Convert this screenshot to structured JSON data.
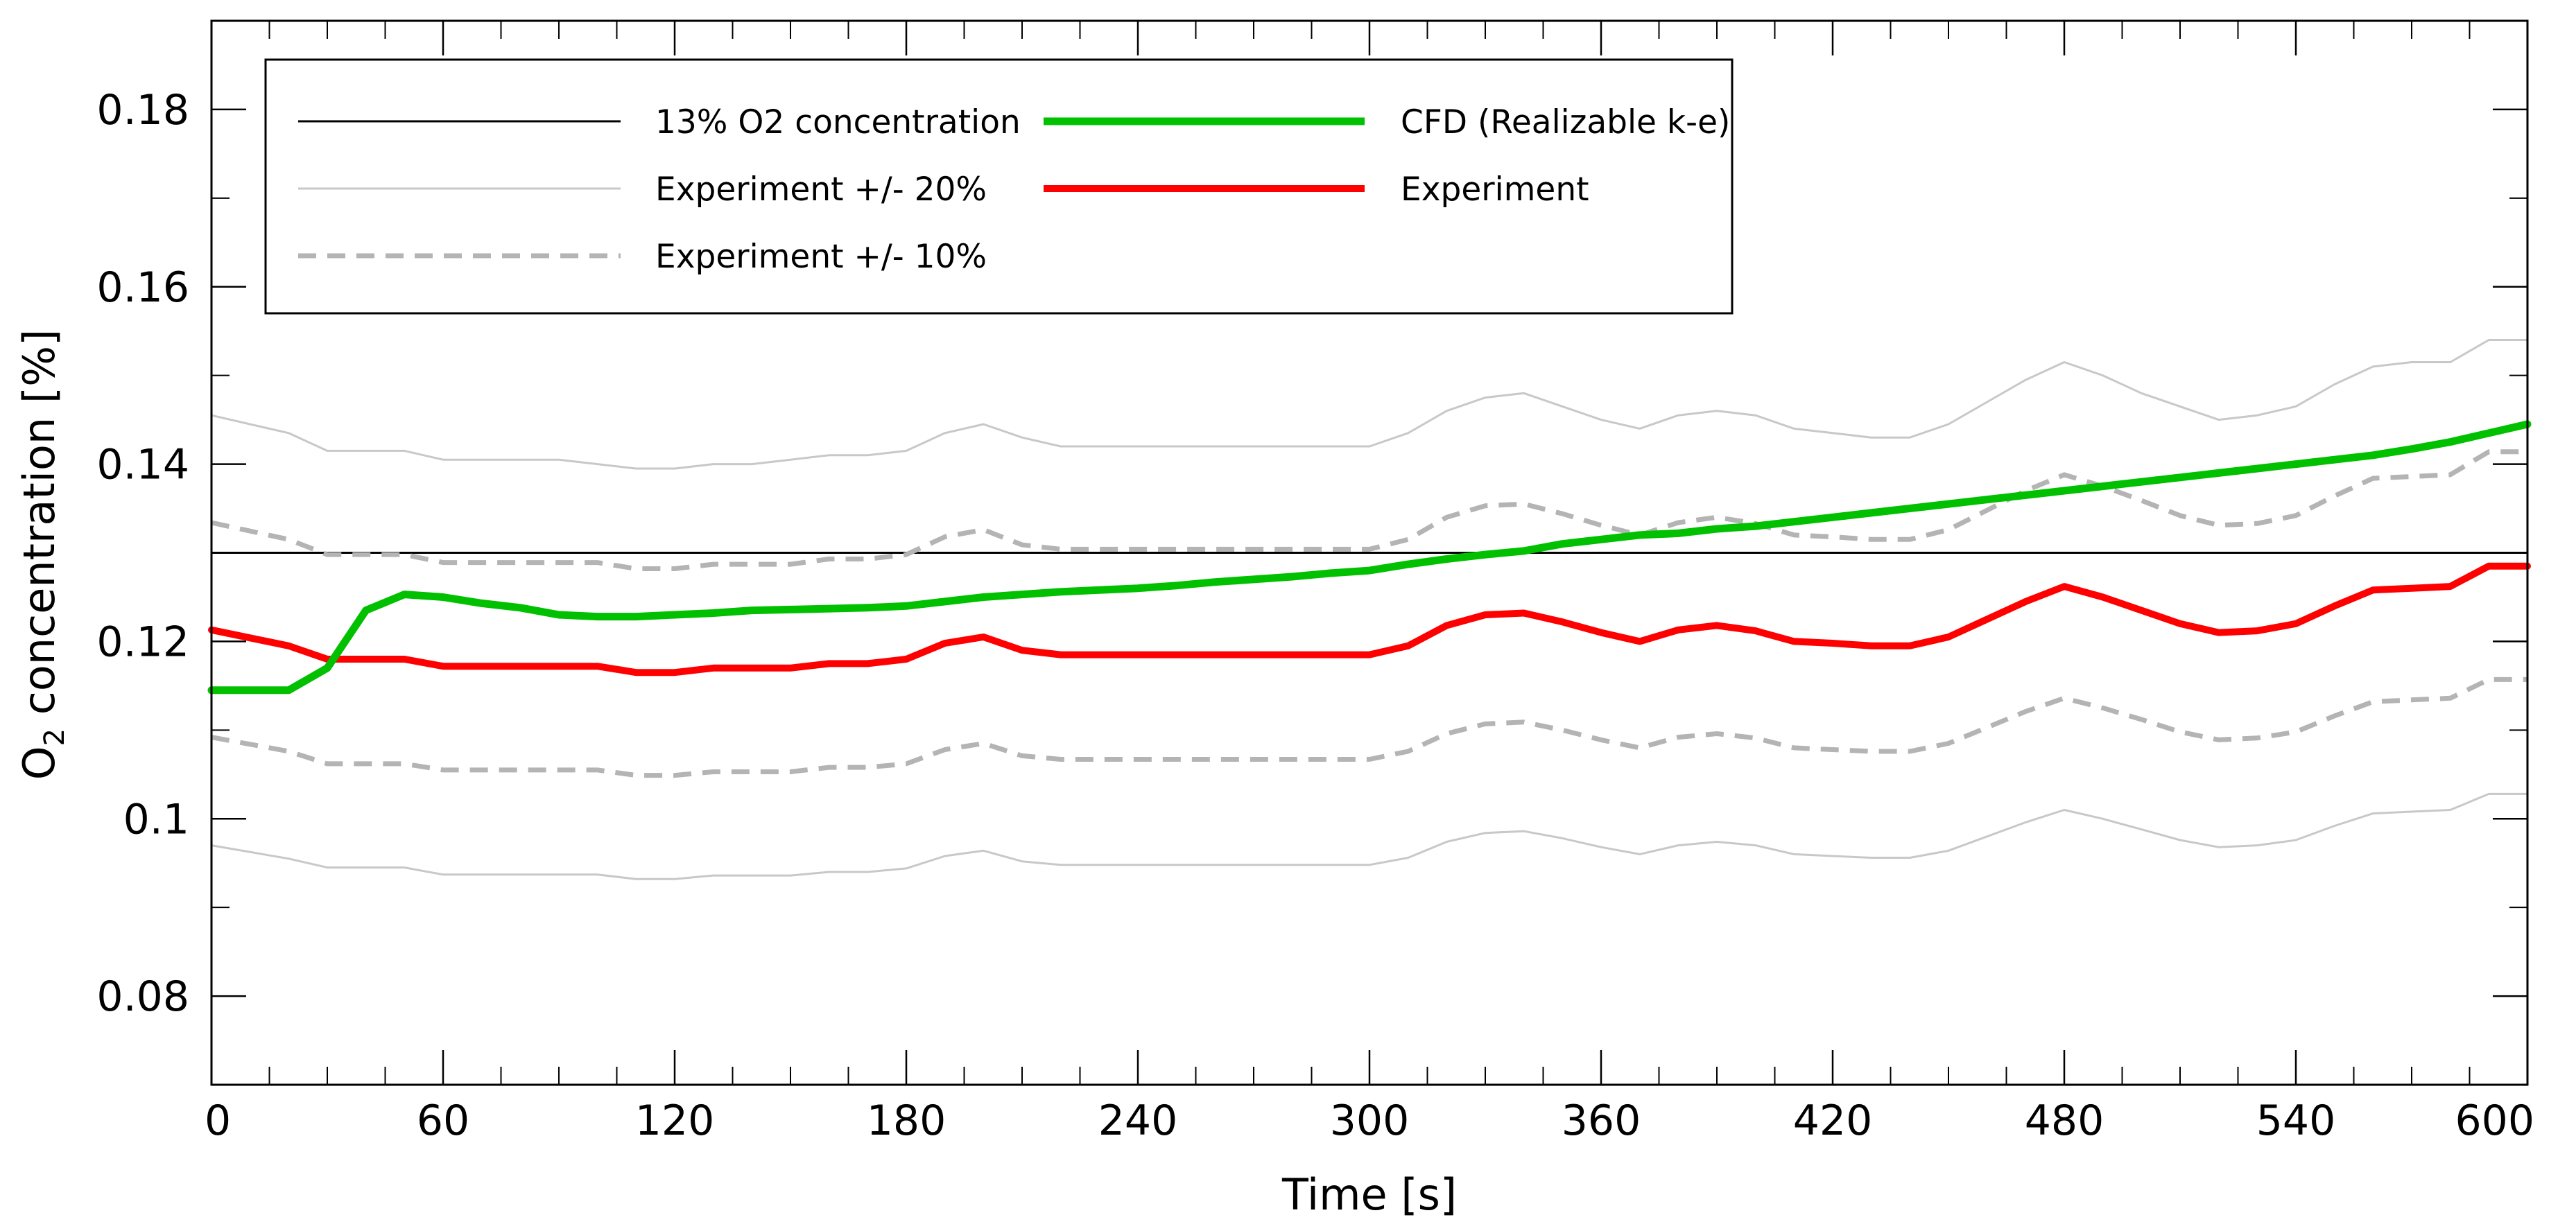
{
  "chart_data": {
    "type": "line",
    "title": "",
    "xlabel": "Time [s]",
    "ylabel": "O2 concentration [%]",
    "ylabel_parts": {
      "base": "O",
      "subscript": "2",
      "rest": " concentration [%]"
    },
    "xlim": [
      0,
      600
    ],
    "ylim": [
      0.07,
      0.19
    ],
    "xticks": [
      0,
      60,
      120,
      180,
      240,
      300,
      360,
      420,
      480,
      540,
      600
    ],
    "xtick_labels": [
      "0",
      "60",
      "120",
      "180",
      "240",
      "300",
      "360",
      "420",
      "480",
      "540",
      "600"
    ],
    "yticks": [
      0.08,
      0.1,
      0.12,
      0.14,
      0.16,
      0.18
    ],
    "ytick_labels": [
      "0.08",
      "0.1",
      "0.12",
      "0.14",
      "0.16",
      "0.18"
    ],
    "grid": false,
    "legend_position": "top-left",
    "reference_line": {
      "name": "13% O2 concentration",
      "y": 0.13,
      "color": "#000000"
    },
    "x": [
      0,
      20,
      30,
      40,
      50,
      60,
      70,
      80,
      90,
      100,
      110,
      120,
      130,
      140,
      150,
      160,
      170,
      180,
      190,
      200,
      210,
      220,
      230,
      240,
      250,
      260,
      270,
      280,
      290,
      300,
      310,
      320,
      330,
      340,
      350,
      360,
      370,
      380,
      390,
      400,
      410,
      420,
      430,
      440,
      450,
      460,
      470,
      480,
      490,
      500,
      510,
      520,
      530,
      540,
      550,
      560,
      570,
      580,
      590,
      600
    ],
    "series": [
      {
        "name": "CFD (Realizable k-e)",
        "color": "#00c000",
        "style": "solid",
        "width": 11,
        "values": [
          0.1145,
          0.1145,
          0.117,
          0.1235,
          0.1253,
          0.125,
          0.1243,
          0.1238,
          0.123,
          0.1228,
          0.1228,
          0.123,
          0.1232,
          0.1235,
          0.1236,
          0.1237,
          0.1238,
          0.124,
          0.1245,
          0.125,
          0.1253,
          0.1256,
          0.1258,
          0.126,
          0.1263,
          0.1267,
          0.127,
          0.1273,
          0.1277,
          0.128,
          0.1287,
          0.1293,
          0.1298,
          0.1302,
          0.131,
          0.1315,
          0.132,
          0.1322,
          0.1327,
          0.133,
          0.1335,
          0.134,
          0.1345,
          0.135,
          0.1355,
          0.136,
          0.1365,
          0.137,
          0.1375,
          0.138,
          0.1385,
          0.139,
          0.1395,
          0.14,
          0.1405,
          0.141,
          0.1417,
          0.1425,
          0.1435,
          0.1445
        ]
      },
      {
        "name": "Experiment",
        "color": "#ff0000",
        "style": "solid",
        "width": 10,
        "values": [
          0.1213,
          0.1195,
          0.118,
          0.118,
          0.118,
          0.1172,
          0.1172,
          0.1172,
          0.1172,
          0.1172,
          0.1165,
          0.1165,
          0.117,
          0.117,
          0.117,
          0.1175,
          0.1175,
          0.118,
          0.1198,
          0.1205,
          0.119,
          0.1185,
          0.1185,
          0.1185,
          0.1185,
          0.1185,
          0.1185,
          0.1185,
          0.1185,
          0.1185,
          0.1195,
          0.1218,
          0.123,
          0.1232,
          0.1222,
          0.121,
          0.12,
          0.1213,
          0.1218,
          0.1212,
          0.12,
          0.1198,
          0.1195,
          0.1195,
          0.1205,
          0.1225,
          0.1245,
          0.1262,
          0.125,
          0.1235,
          0.122,
          0.121,
          0.1212,
          0.122,
          0.124,
          0.1258,
          0.126,
          0.1262,
          0.1285,
          0.1285
        ]
      },
      {
        "name": "Experiment +/- 20%",
        "color": "#c8c8c8",
        "style": "solid",
        "width": 3,
        "values_upper": [
          0.1455,
          0.1435,
          0.1415,
          0.1415,
          0.1415,
          0.1405,
          0.1405,
          0.1405,
          0.1405,
          0.14,
          0.1395,
          0.1395,
          0.14,
          0.14,
          0.1405,
          0.141,
          0.141,
          0.1415,
          0.1435,
          0.1445,
          0.143,
          0.142,
          0.142,
          0.142,
          0.142,
          0.142,
          0.142,
          0.142,
          0.142,
          0.142,
          0.1435,
          0.146,
          0.1475,
          0.148,
          0.1465,
          0.145,
          0.144,
          0.1455,
          0.146,
          0.1455,
          0.144,
          0.1435,
          0.143,
          0.143,
          0.1445,
          0.147,
          0.1495,
          0.1515,
          0.15,
          0.148,
          0.1465,
          0.145,
          0.1455,
          0.1465,
          0.149,
          0.151,
          0.1515,
          0.1515,
          0.154,
          0.154
        ],
        "values_lower": [
          0.097,
          0.0955,
          0.0945,
          0.0945,
          0.0945,
          0.0937,
          0.0937,
          0.0937,
          0.0937,
          0.0937,
          0.0932,
          0.0932,
          0.0936,
          0.0936,
          0.0936,
          0.094,
          0.094,
          0.0944,
          0.0958,
          0.0964,
          0.0952,
          0.0948,
          0.0948,
          0.0948,
          0.0948,
          0.0948,
          0.0948,
          0.0948,
          0.0948,
          0.0948,
          0.0956,
          0.0974,
          0.0984,
          0.0986,
          0.0978,
          0.0968,
          0.096,
          0.097,
          0.0974,
          0.097,
          0.096,
          0.0958,
          0.0956,
          0.0956,
          0.0964,
          0.098,
          0.0996,
          0.101,
          0.1,
          0.0988,
          0.0976,
          0.0968,
          0.097,
          0.0976,
          0.0992,
          0.1006,
          0.1008,
          0.101,
          0.1028,
          0.1028
        ]
      },
      {
        "name": "Experiment +/- 10%",
        "color": "#b4b4b4",
        "style": "dashed",
        "width": 7,
        "values_upper": [
          0.1334,
          0.1315,
          0.1298,
          0.1298,
          0.1298,
          0.1289,
          0.1289,
          0.1289,
          0.1289,
          0.1289,
          0.1282,
          0.1282,
          0.1287,
          0.1287,
          0.1287,
          0.1293,
          0.1293,
          0.1298,
          0.1318,
          0.1326,
          0.1309,
          0.1304,
          0.1304,
          0.1304,
          0.1304,
          0.1304,
          0.1304,
          0.1304,
          0.1304,
          0.1304,
          0.1315,
          0.134,
          0.1353,
          0.1355,
          0.1344,
          0.1331,
          0.132,
          0.1334,
          0.134,
          0.1333,
          0.132,
          0.1318,
          0.1315,
          0.1315,
          0.1326,
          0.1348,
          0.137,
          0.1388,
          0.1375,
          0.1359,
          0.1342,
          0.1331,
          0.1333,
          0.1342,
          0.1364,
          0.1384,
          0.1386,
          0.1388,
          0.1414,
          0.1414
        ],
        "values_lower": [
          0.1092,
          0.1076,
          0.1062,
          0.1062,
          0.1062,
          0.1055,
          0.1055,
          0.1055,
          0.1055,
          0.1055,
          0.1049,
          0.1049,
          0.1053,
          0.1053,
          0.1053,
          0.1058,
          0.1058,
          0.1062,
          0.1078,
          0.1085,
          0.1071,
          0.1067,
          0.1067,
          0.1067,
          0.1067,
          0.1067,
          0.1067,
          0.1067,
          0.1067,
          0.1067,
          0.1076,
          0.1096,
          0.1107,
          0.1109,
          0.11,
          0.1089,
          0.108,
          0.1092,
          0.1096,
          0.1091,
          0.108,
          0.1078,
          0.1076,
          0.1076,
          0.1085,
          0.1103,
          0.1121,
          0.1136,
          0.1125,
          0.1112,
          0.1098,
          0.1089,
          0.1091,
          0.1098,
          0.1116,
          0.1132,
          0.1134,
          0.1136,
          0.1157,
          0.1157
        ]
      }
    ],
    "legend_entries": [
      {
        "label": "13% O2 concentration",
        "color": "#000000",
        "style": "solid",
        "width": 3
      },
      {
        "label": "Experiment +/- 20%",
        "color": "#c8c8c8",
        "style": "solid",
        "width": 3
      },
      {
        "label": "Experiment +/- 10%",
        "color": "#b4b4b4",
        "style": "dashed",
        "width": 7
      },
      {
        "label": "CFD (Realizable k-e)",
        "color": "#00c000",
        "style": "solid",
        "width": 11
      },
      {
        "label": "Experiment",
        "color": "#ff0000",
        "style": "solid",
        "width": 10
      }
    ]
  }
}
